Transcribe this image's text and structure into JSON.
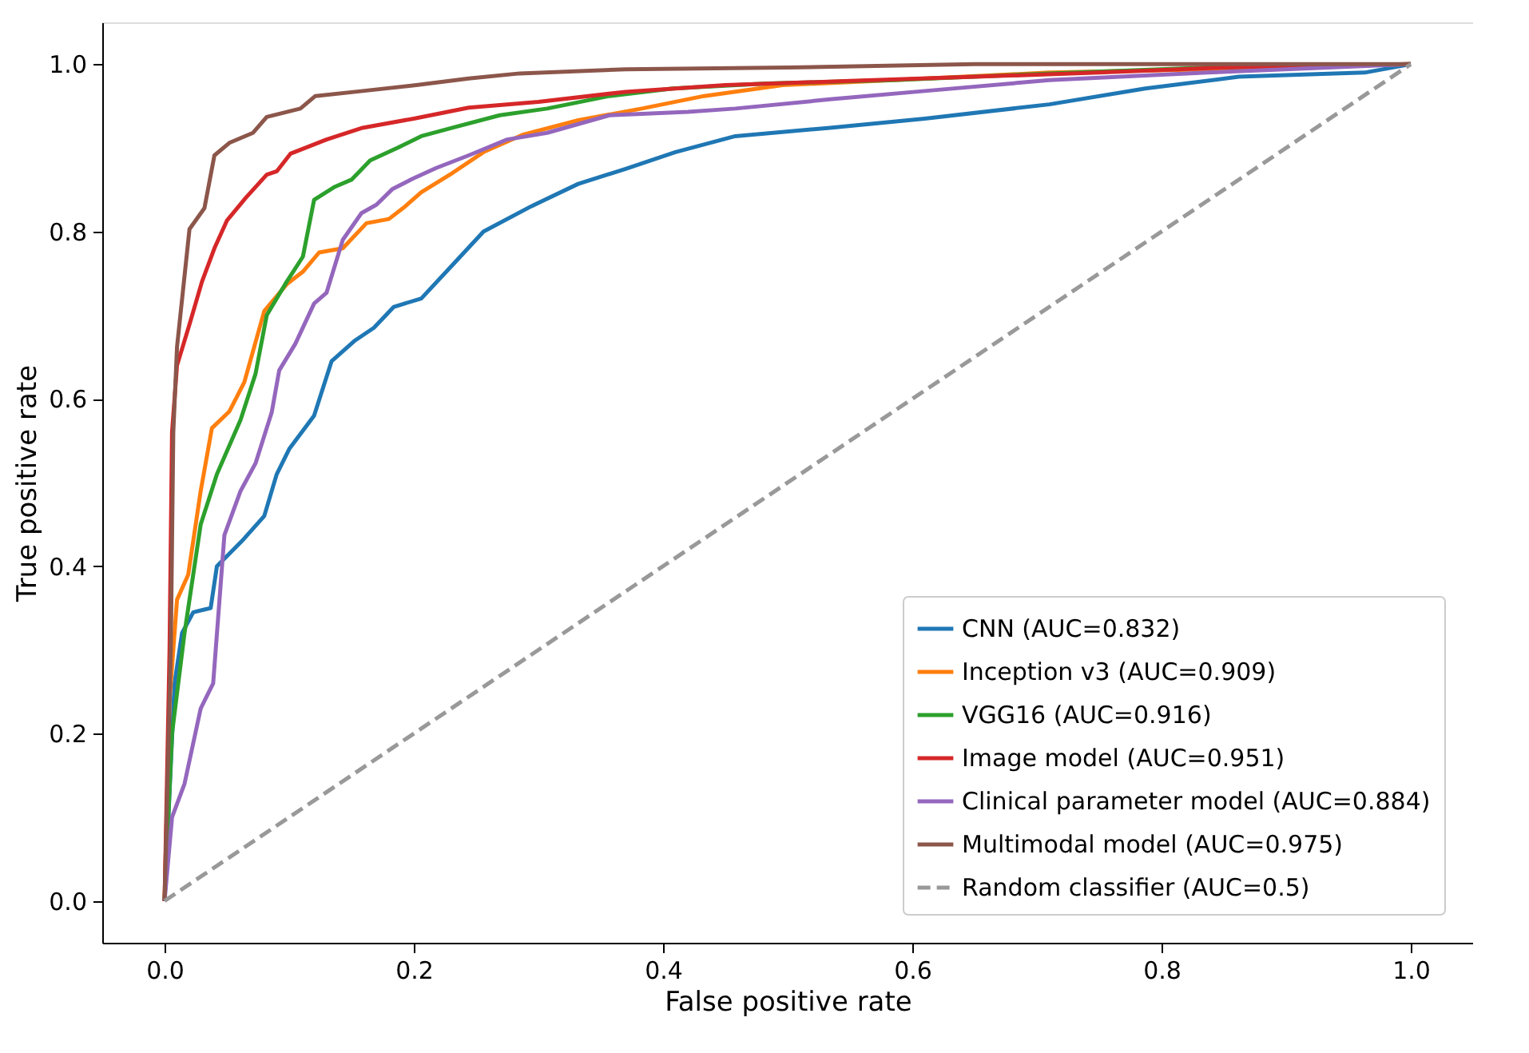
{
  "chart_data": {
    "type": "line",
    "xlabel": "False positive rate",
    "ylabel": "True positive rate",
    "xlim": [
      -0.05,
      1.05
    ],
    "ylim": [
      -0.05,
      1.05
    ],
    "xticks": [
      {
        "value": 0,
        "label": "0.0"
      },
      0.2,
      0.4,
      0.6,
      0.8,
      {
        "value": 1,
        "label": "1.0"
      }
    ],
    "yticks": [
      {
        "value": 0,
        "label": "0.0"
      },
      0.2,
      0.4,
      0.6,
      0.8,
      {
        "value": 1,
        "label": "1.0"
      }
    ],
    "grid": false,
    "legend": "bottom right",
    "marker": "none",
    "series": [
      {
        "name": "CNN (AUC=0.832)",
        "color": "#1f77b4",
        "line_style": "solid",
        "x": [
          0,
          0.008,
          0.014,
          0.023,
          0.037,
          0.042,
          0.062,
          0.08,
          0.09,
          0.1,
          0.12,
          0.134,
          0.153,
          0.168,
          0.184,
          0.206,
          0.231,
          0.256,
          0.294,
          0.332,
          0.37,
          0.41,
          0.458,
          0.534,
          0.61,
          0.71,
          0.787,
          0.862,
          0.963,
          1
        ],
        "values": [
          0,
          0.26,
          0.32,
          0.345,
          0.35,
          0.4,
          0.43,
          0.46,
          0.51,
          0.54,
          0.58,
          0.645,
          0.67,
          0.685,
          0.71,
          0.72,
          0.76,
          0.8,
          0.83,
          0.857,
          0.875,
          0.895,
          0.914,
          0.924,
          0.935,
          0.952,
          0.971,
          0.985,
          0.99,
          1
        ]
      },
      {
        "name": "Inception v3 (AUC=0.909)",
        "color": "#ff7f0e",
        "line_style": "solid",
        "x": [
          0,
          0.004,
          0.01,
          0.019,
          0.029,
          0.038,
          0.052,
          0.064,
          0.08,
          0.098,
          0.111,
          0.124,
          0.143,
          0.162,
          0.18,
          0.193,
          0.206,
          0.231,
          0.256,
          0.288,
          0.332,
          0.383,
          0.433,
          0.496,
          0.585,
          0.71,
          0.837,
          1
        ],
        "values": [
          0,
          0.24,
          0.36,
          0.39,
          0.49,
          0.565,
          0.585,
          0.62,
          0.705,
          0.737,
          0.752,
          0.775,
          0.78,
          0.81,
          0.815,
          0.83,
          0.847,
          0.87,
          0.895,
          0.916,
          0.933,
          0.947,
          0.962,
          0.975,
          0.981,
          0.99,
          0.994,
          1
        ]
      },
      {
        "name": "VGG16 (AUC=0.916)",
        "color": "#2ca02c",
        "line_style": "solid",
        "x": [
          0,
          0.006,
          0.016,
          0.029,
          0.042,
          0.061,
          0.073,
          0.082,
          0.098,
          0.111,
          0.12,
          0.136,
          0.15,
          0.165,
          0.187,
          0.206,
          0.231,
          0.269,
          0.307,
          0.357,
          0.408,
          0.483,
          0.585,
          0.71,
          0.837,
          1
        ],
        "values": [
          0,
          0.2,
          0.32,
          0.45,
          0.51,
          0.575,
          0.63,
          0.7,
          0.74,
          0.77,
          0.838,
          0.853,
          0.862,
          0.885,
          0.9,
          0.914,
          0.924,
          0.939,
          0.947,
          0.962,
          0.971,
          0.977,
          0.981,
          0.989,
          0.996,
          1
        ]
      },
      {
        "name": "Image model (AUC=0.951)",
        "color": "#d62728",
        "line_style": "solid",
        "x": [
          0,
          0.004,
          0.006,
          0.01,
          0.02,
          0.03,
          0.04,
          0.05,
          0.065,
          0.082,
          0.09,
          0.101,
          0.13,
          0.159,
          0.2,
          0.244,
          0.3,
          0.37,
          0.45,
          0.55,
          0.65,
          0.75,
          0.85,
          1
        ],
        "values": [
          0,
          0.3,
          0.56,
          0.64,
          0.689,
          0.74,
          0.78,
          0.813,
          0.84,
          0.868,
          0.872,
          0.893,
          0.91,
          0.924,
          0.935,
          0.948,
          0.955,
          0.967,
          0.975,
          0.98,
          0.985,
          0.99,
          0.996,
          1
        ]
      },
      {
        "name": "Clinical parameter model (AUC=0.884)",
        "color": "#9467bd",
        "line_style": "solid",
        "x": [
          0,
          0.006,
          0.016,
          0.029,
          0.039,
          0.048,
          0.061,
          0.073,
          0.086,
          0.092,
          0.105,
          0.12,
          0.13,
          0.143,
          0.158,
          0.17,
          0.183,
          0.199,
          0.218,
          0.244,
          0.275,
          0.307,
          0.357,
          0.42,
          0.458,
          0.534,
          0.61,
          0.71,
          0.837,
          1
        ],
        "values": [
          0,
          0.1,
          0.14,
          0.23,
          0.26,
          0.437,
          0.49,
          0.523,
          0.584,
          0.634,
          0.666,
          0.714,
          0.727,
          0.79,
          0.822,
          0.832,
          0.851,
          0.863,
          0.876,
          0.891,
          0.91,
          0.918,
          0.939,
          0.943,
          0.947,
          0.958,
          0.968,
          0.981,
          0.99,
          1
        ]
      },
      {
        "name": "Multimodal model (AUC=0.975)",
        "color": "#8c564b",
        "line_style": "solid",
        "x": [
          0,
          0.005,
          0.007,
          0.01,
          0.02,
          0.032,
          0.04,
          0.052,
          0.071,
          0.082,
          0.109,
          0.121,
          0.159,
          0.202,
          0.244,
          0.285,
          0.37,
          0.5,
          0.65,
          1
        ],
        "values": [
          0,
          0.3,
          0.56,
          0.662,
          0.803,
          0.828,
          0.891,
          0.906,
          0.918,
          0.937,
          0.947,
          0.962,
          0.968,
          0.975,
          0.983,
          0.989,
          0.994,
          0.996,
          1,
          1
        ]
      },
      {
        "name": "Random classifier (AUC=0.5)",
        "color": "#999999",
        "line_style": "dashed",
        "x": [
          0,
          1
        ],
        "values": [
          0,
          1
        ]
      }
    ]
  }
}
